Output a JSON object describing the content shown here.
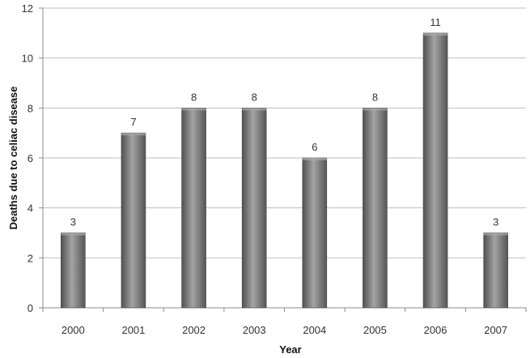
{
  "chart_data": {
    "type": "bar",
    "categories": [
      "2000",
      "2001",
      "2002",
      "2003",
      "2004",
      "2005",
      "2006",
      "2007"
    ],
    "values": [
      3,
      7,
      8,
      8,
      6,
      8,
      11,
      3
    ],
    "data_labels": [
      "3",
      "7",
      "8",
      "8",
      "6",
      "8",
      "11",
      "3"
    ],
    "xlabel": "Year",
    "ylabel": "Deaths due to celiac disease",
    "ylim": [
      0,
      12
    ],
    "yticks": [
      0,
      2,
      4,
      6,
      8,
      10,
      12
    ],
    "grid": true,
    "colors": {
      "bar": "#7a7a7a",
      "bar_light": "#a8a8a8",
      "bar_dark": "#4a4a4a",
      "grid": "#bfbfbf",
      "axis": "#8c8c8c"
    }
  }
}
